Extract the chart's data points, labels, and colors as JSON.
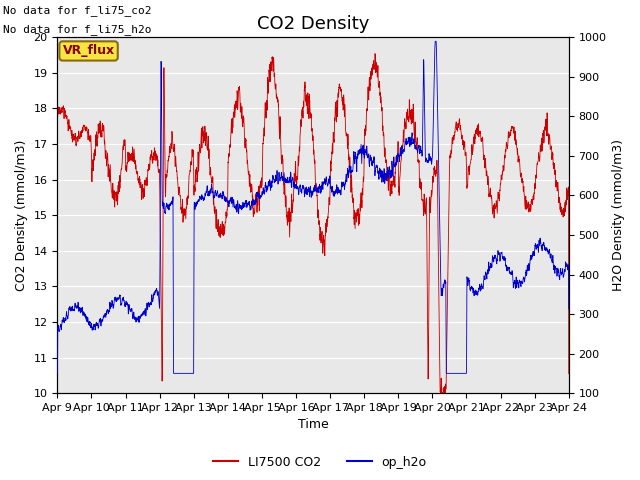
{
  "title": "CO2 Density",
  "xlabel": "Time",
  "ylabel_left": "CO2 Density (mmol/m3)",
  "ylabel_right": "H2O Density (mmol/m3)",
  "ylim_left": [
    10.0,
    20.0
  ],
  "ylim_right": [
    100,
    1000
  ],
  "yticks_left": [
    10.0,
    11.0,
    12.0,
    13.0,
    14.0,
    15.0,
    16.0,
    17.0,
    18.0,
    19.0,
    20.0
  ],
  "yticks_right": [
    100,
    200,
    300,
    400,
    500,
    600,
    700,
    800,
    900,
    1000
  ],
  "xtick_labels": [
    "Apr 9",
    "Apr 10",
    "Apr 11",
    "Apr 12",
    "Apr 13",
    "Apr 14",
    "Apr 15",
    "Apr 16",
    "Apr 17",
    "Apr 18",
    "Apr 19",
    "Apr 20",
    "Apr 21",
    "Apr 22",
    "Apr 23",
    "Apr 24"
  ],
  "annotation_lines": [
    "No data for f_li75_co2",
    "No data for f_li75_h2o"
  ],
  "vr_flux_label": "VR_flux",
  "legend_entries": [
    "LI7500 CO2",
    "op_h2o"
  ],
  "legend_colors": [
    "#cc0000",
    "#0000cc"
  ],
  "line_color_red": "#cc0000",
  "line_color_blue": "#0000cc",
  "bg_color": "#e8e8e8",
  "fig_bg_color": "#ffffff",
  "title_fontsize": 13,
  "label_fontsize": 9,
  "tick_fontsize": 8,
  "annotation_fontsize": 8
}
